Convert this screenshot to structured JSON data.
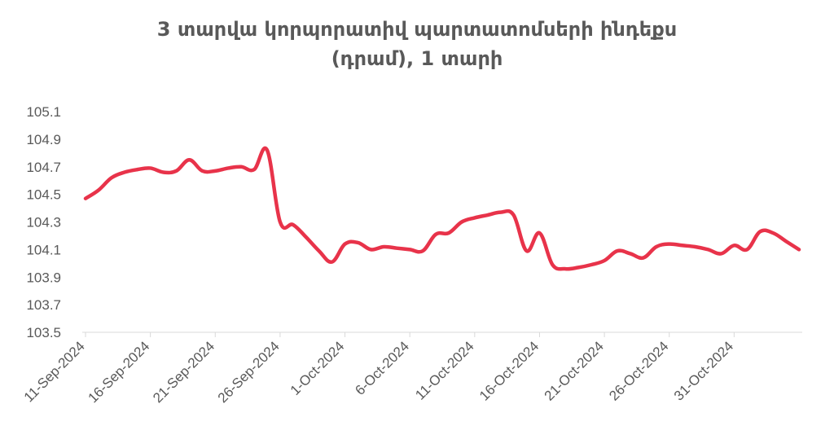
{
  "chart_data": {
    "type": "line",
    "title_line1": "3 տարվա կորպորատիվ պարտատոմսերի ինդեքս",
    "title_line2": "(դրամ), 1 տարի",
    "xlabel": "",
    "ylabel": "",
    "ylim": [
      103.5,
      105.1
    ],
    "y_ticks": [
      "105.1",
      "104.9",
      "104.7",
      "104.5",
      "104.3",
      "104.1",
      "103.9",
      "103.7",
      "103.5"
    ],
    "x_range": [
      "2024-09-11",
      "2024-11-05"
    ],
    "x_ticks": [
      "11-Sep-2024",
      "16-Sep-2024",
      "21-Sep-2024",
      "26-Sep-2024",
      "1-Oct-2024",
      "6-Oct-2024",
      "11-Oct-2024",
      "16-Oct-2024",
      "21-Oct-2024",
      "26-Oct-2024",
      "31-Oct-2024"
    ],
    "x_tick_dates": [
      "2024-09-11",
      "2024-09-16",
      "2024-09-21",
      "2024-09-26",
      "2024-10-01",
      "2024-10-06",
      "2024-10-11",
      "2024-10-16",
      "2024-10-21",
      "2024-10-26",
      "2024-10-31"
    ],
    "grid": false,
    "series": [
      {
        "color": "#E8334A",
        "x": [
          "2024-09-11",
          "2024-09-12",
          "2024-09-13",
          "2024-09-14",
          "2024-09-15",
          "2024-09-16",
          "2024-09-17",
          "2024-09-18",
          "2024-09-19",
          "2024-09-20",
          "2024-09-21",
          "2024-09-22",
          "2024-09-23",
          "2024-09-24",
          "2024-09-25",
          "2024-09-26",
          "2024-09-27",
          "2024-09-28",
          "2024-09-29",
          "2024-09-30",
          "2024-10-01",
          "2024-10-02",
          "2024-10-03",
          "2024-10-04",
          "2024-10-05",
          "2024-10-06",
          "2024-10-07",
          "2024-10-08",
          "2024-10-09",
          "2024-10-10",
          "2024-10-11",
          "2024-10-12",
          "2024-10-13",
          "2024-10-14",
          "2024-10-15",
          "2024-10-16",
          "2024-10-17",
          "2024-10-18",
          "2024-10-19",
          "2024-10-20",
          "2024-10-21",
          "2024-10-22",
          "2024-10-23",
          "2024-10-24",
          "2024-10-25",
          "2024-10-26",
          "2024-10-27",
          "2024-10-28",
          "2024-10-29",
          "2024-10-30",
          "2024-10-31",
          "2024-11-01",
          "2024-11-02",
          "2024-11-03",
          "2024-11-04",
          "2024-11-05"
        ],
        "values": [
          104.47,
          104.53,
          104.62,
          104.66,
          104.68,
          104.69,
          104.66,
          104.67,
          104.75,
          104.67,
          104.67,
          104.69,
          104.7,
          104.68,
          104.82,
          104.3,
          104.28,
          104.19,
          104.09,
          104.01,
          104.14,
          104.15,
          104.1,
          104.12,
          104.11,
          104.1,
          104.09,
          104.21,
          104.22,
          104.3,
          104.33,
          104.35,
          104.37,
          104.35,
          104.09,
          104.22,
          103.99,
          103.96,
          103.97,
          103.99,
          104.02,
          104.09,
          104.07,
          104.04,
          104.12,
          104.14,
          104.13,
          104.12,
          104.1,
          104.07,
          104.13,
          104.1,
          104.23,
          104.22,
          104.16,
          104.1
        ]
      }
    ]
  }
}
